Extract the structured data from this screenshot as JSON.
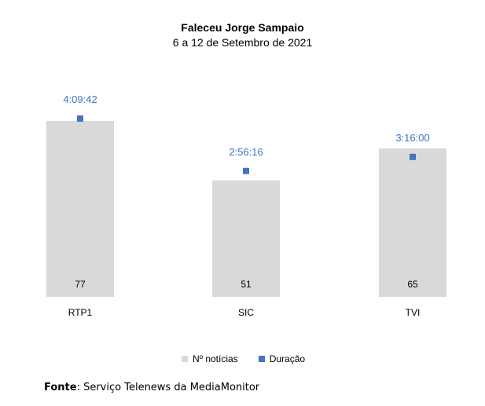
{
  "chart_data": {
    "type": "bar",
    "title": "Faleceu Jorge Sampaio",
    "subtitle": "6 a 12 de Setembro de 2021",
    "categories": [
      "RTP1",
      "SIC",
      "TVI"
    ],
    "series": [
      {
        "name": "Nº notícias",
        "chart_type": "bar",
        "color": "#d9d9d9",
        "values": [
          77,
          51,
          65
        ],
        "labels": [
          "77",
          "51",
          "65"
        ]
      },
      {
        "name": "Duração",
        "chart_type": "marker",
        "color": "#4472c4",
        "values": [
          "4:09:42",
          "2:56:16",
          "3:16:00"
        ],
        "labels": [
          "4:09:42",
          "2:56:16",
          "3:16:00"
        ]
      }
    ],
    "legend_position": "bottom",
    "grid": false
  },
  "source": {
    "label": "Fonte",
    "text": ": Serviço Telenews da MediaMonitor"
  }
}
